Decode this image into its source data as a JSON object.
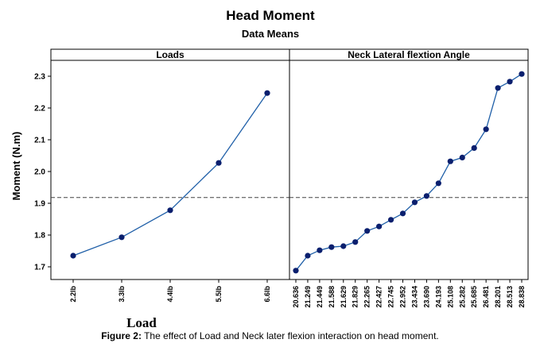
{
  "figure": {
    "caption_label": "Figure 2:",
    "caption_text": "The effect of Load and Neck later flexion interaction on head moment."
  },
  "chart_data": {
    "type": "line",
    "title": "Head Moment",
    "subtitle": "Data Means",
    "ylabel": "Moment (N.m)",
    "ylim": [
      1.66,
      2.35
    ],
    "yticks": [
      1.7,
      1.8,
      1.9,
      2.0,
      2.1,
      2.2,
      2.3
    ],
    "ytick_labels": [
      "1.7",
      "1.8",
      "1.9",
      "2.0",
      "2.1",
      "2.2",
      "2.3"
    ],
    "reference_line": 1.918,
    "line_color": "#1f5fa8",
    "marker_color": "#0a1f6e",
    "panels": [
      {
        "title": "Loads",
        "xlabel": "Load",
        "categories": [
          "2.2lb",
          "3.3lb",
          "4.4lb",
          "5.5lb",
          "6.6lb"
        ],
        "values": [
          1.735,
          1.793,
          1.878,
          2.027,
          2.247
        ]
      },
      {
        "title": "Neck Lateral flextion  Angle",
        "xlabel": "",
        "categories": [
          "20.636",
          "21.249",
          "21.449",
          "21.588",
          "21.629",
          "21.829",
          "22.265",
          "22.427",
          "22.745",
          "22.952",
          "23.434",
          "23.690",
          "24.193",
          "25.108",
          "25.282",
          "25.685",
          "26.481",
          "28.201",
          "28.513",
          "28.838"
        ],
        "values": [
          1.688,
          1.735,
          1.752,
          1.762,
          1.765,
          1.778,
          1.813,
          1.827,
          1.848,
          1.868,
          1.903,
          1.923,
          1.963,
          2.032,
          2.044,
          2.074,
          2.133,
          2.263,
          2.283,
          2.307
        ]
      }
    ]
  }
}
